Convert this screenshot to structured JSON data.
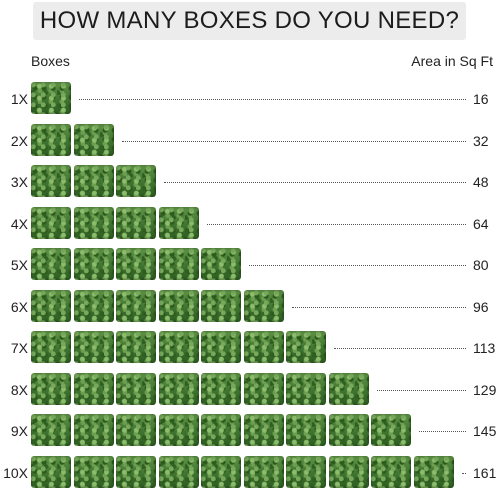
{
  "title": "HOW MANY BOXES DO YOU NEED?",
  "headers": {
    "boxes": "Boxes",
    "area": "Area in Sq Ft"
  },
  "icon": "grass-box-icon",
  "rows": [
    {
      "multiplier": "1X",
      "count": 1,
      "area": "16"
    },
    {
      "multiplier": "2X",
      "count": 2,
      "area": "32"
    },
    {
      "multiplier": "3X",
      "count": 3,
      "area": "48"
    },
    {
      "multiplier": "4X",
      "count": 4,
      "area": "64"
    },
    {
      "multiplier": "5X",
      "count": 5,
      "area": "80"
    },
    {
      "multiplier": "6X",
      "count": 6,
      "area": "96"
    },
    {
      "multiplier": "7X",
      "count": 7,
      "area": "113"
    },
    {
      "multiplier": "8X",
      "count": 8,
      "area": "129"
    },
    {
      "multiplier": "9X",
      "count": 9,
      "area": "145"
    },
    {
      "multiplier": "10X",
      "count": 10,
      "area": "161"
    }
  ],
  "colors": {
    "grass": "#3f7530",
    "title_bg": "#ececec"
  }
}
